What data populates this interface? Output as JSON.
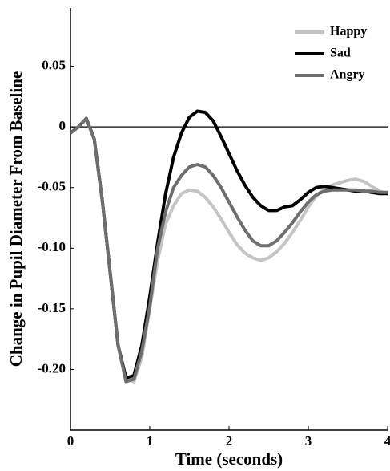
{
  "chart_data": {
    "type": "line",
    "x_label": "Time (seconds)",
    "y_label": "Change in Pupil Diameter From Baseline",
    "x": [
      0,
      0.1,
      0.2,
      0.3,
      0.4,
      0.5,
      0.6,
      0.7,
      0.8,
      0.9,
      1,
      1.1,
      1.2,
      1.3,
      1.4,
      1.5,
      1.6,
      1.7,
      1.8,
      1.9,
      2,
      2.1,
      2.2,
      2.3,
      2.4,
      2.5,
      2.6,
      2.7,
      2.8,
      2.9,
      3,
      3.1,
      3.2,
      3.3,
      3.4,
      3.5,
      3.6,
      3.7,
      3.8,
      3.9,
      4
    ],
    "series": [
      {
        "name": "Happy",
        "color": "#c4c4c4",
        "values": [
          -0.005,
          0,
          0.007,
          -0.01,
          -0.06,
          -0.12,
          -0.18,
          -0.208,
          -0.21,
          -0.19,
          -0.15,
          -0.11,
          -0.08,
          -0.065,
          -0.055,
          -0.052,
          -0.053,
          -0.058,
          -0.066,
          -0.076,
          -0.087,
          -0.097,
          -0.104,
          -0.108,
          -0.11,
          -0.108,
          -0.103,
          -0.096,
          -0.087,
          -0.077,
          -0.066,
          -0.057,
          -0.051,
          -0.048,
          -0.046,
          -0.044,
          -0.043,
          -0.045,
          -0.049,
          -0.053,
          -0.055
        ]
      },
      {
        "name": "Sad",
        "color": "#000000",
        "values": [
          -0.005,
          0,
          0.007,
          -0.01,
          -0.06,
          -0.12,
          -0.18,
          -0.207,
          -0.205,
          -0.18,
          -0.14,
          -0.095,
          -0.055,
          -0.025,
          -0.005,
          0.008,
          0.013,
          0.012,
          0.005,
          -0.008,
          -0.022,
          -0.036,
          -0.048,
          -0.058,
          -0.065,
          -0.069,
          -0.069,
          -0.066,
          -0.065,
          -0.06,
          -0.054,
          -0.05,
          -0.049,
          -0.05,
          -0.051,
          -0.052,
          -0.053,
          -0.053,
          -0.054,
          -0.055,
          -0.055
        ]
      },
      {
        "name": "Angry",
        "color": "#6e6e6e",
        "values": [
          -0.005,
          0,
          0.007,
          -0.01,
          -0.06,
          -0.12,
          -0.18,
          -0.21,
          -0.208,
          -0.185,
          -0.148,
          -0.1,
          -0.07,
          -0.05,
          -0.04,
          -0.033,
          -0.031,
          -0.033,
          -0.04,
          -0.05,
          -0.062,
          -0.074,
          -0.085,
          -0.094,
          -0.098,
          -0.098,
          -0.094,
          -0.087,
          -0.079,
          -0.07,
          -0.062,
          -0.056,
          -0.053,
          -0.052,
          -0.052,
          -0.052,
          -0.052,
          -0.053,
          -0.053,
          -0.054,
          -0.054
        ]
      }
    ],
    "xlim": [
      0,
      4
    ],
    "xticks": [
      0,
      1,
      2,
      3,
      4
    ],
    "ylim": [
      -0.25,
      0.1
    ],
    "yticks": [
      0.05,
      0,
      -0.05,
      {
        "value": -0.1,
        "label": "-0.10"
      },
      -0.15,
      {
        "value": -0.2,
        "label": "-0.20"
      }
    ],
    "hline": 0,
    "legend": "upper-right"
  }
}
